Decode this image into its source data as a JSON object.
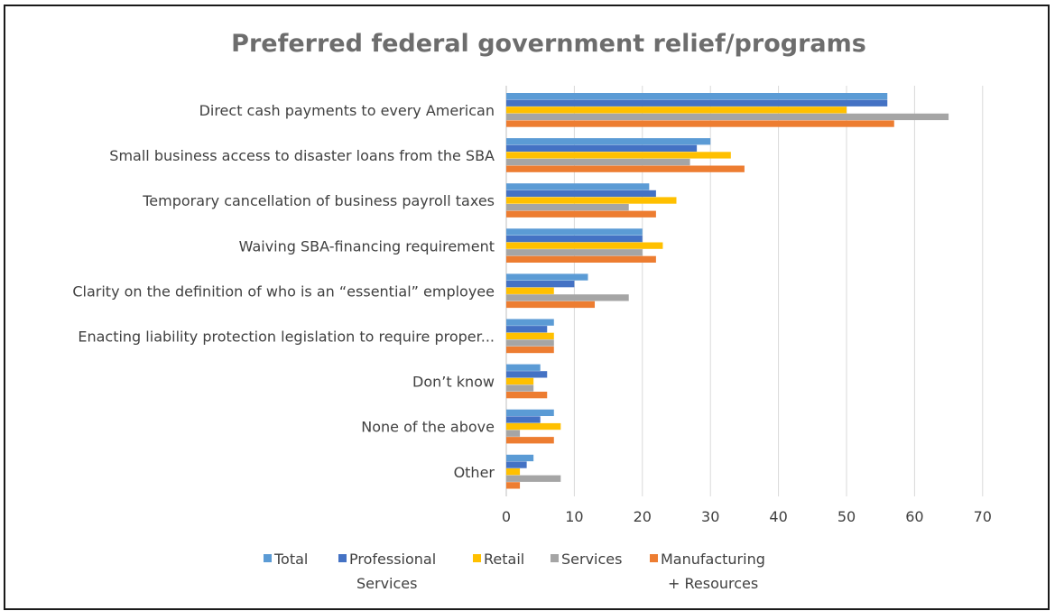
{
  "chart_data": {
    "type": "bar",
    "orientation": "horizontal",
    "title": "Preferred federal government relief/programs",
    "xlabel": "",
    "ylabel": "",
    "xlim": [
      0,
      70
    ],
    "ticks": [
      0,
      10,
      20,
      30,
      40,
      50,
      60,
      70
    ],
    "grid": true,
    "legend_position": "bottom",
    "categories": [
      "Direct cash payments to every American",
      "Small business access to disaster loans from the SBA",
      "Temporary cancellation of business payroll taxes",
      "Waiving SBA-financing requirement",
      "Clarity on the definition of who is an “essential” employee",
      "Enacting liability protection legislation to require proper...",
      "Don’t know",
      "None of the above",
      "Other"
    ],
    "series": [
      {
        "name": "Total",
        "color": "#5b9bd5",
        "values": [
          56,
          30,
          21,
          20,
          12,
          7,
          5,
          7,
          4
        ]
      },
      {
        "name": "Professional Services",
        "color": "#4472c4",
        "values": [
          56,
          28,
          22,
          20,
          10,
          6,
          6,
          5,
          3
        ]
      },
      {
        "name": "Retail",
        "color": "#ffc000",
        "values": [
          50,
          33,
          25,
          23,
          7,
          7,
          4,
          8,
          2
        ]
      },
      {
        "name": "Services",
        "color": "#a5a5a5",
        "values": [
          65,
          27,
          18,
          20,
          18,
          7,
          4,
          2,
          8
        ]
      },
      {
        "name": "Manufacturing + Resources",
        "color": "#ed7d31",
        "values": [
          57,
          35,
          22,
          22,
          13,
          7,
          6,
          7,
          2
        ]
      }
    ],
    "legend": [
      {
        "line1": "Total",
        "line2": ""
      },
      {
        "line1": "Professional",
        "line2": "Services"
      },
      {
        "line1": "Retail",
        "line2": ""
      },
      {
        "line1": "Services",
        "line2": ""
      },
      {
        "line1": "Manufacturing",
        "line2": "+ Resources"
      }
    ]
  }
}
